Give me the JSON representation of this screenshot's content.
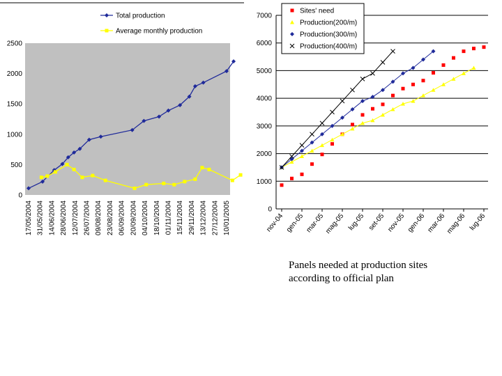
{
  "colors": {
    "blue": "#1f2a9a",
    "yellow": "#ffff00",
    "red": "#ff0000",
    "gray": "#c0c0c0",
    "black": "#000000"
  },
  "caption": {
    "line1": "Panels needed at production sites",
    "line2": "according to official plan"
  },
  "chart_data": [
    {
      "type": "line",
      "title": "",
      "xlabel": "",
      "ylabel": "",
      "ylim": [
        0,
        2500
      ],
      "yticks": [
        0,
        500,
        1000,
        1500,
        2000,
        2500
      ],
      "grid": false,
      "legend": "top",
      "xticks": [
        "17/05/2004",
        "31/05/2004",
        "14/06/2004",
        "28/06/2004",
        "12/07/2004",
        "26/07/2004",
        "09/08/2004",
        "23/08/2004",
        "06/09/2004",
        "20/09/2004",
        "04/10/2004",
        "18/10/2004",
        "01/11/2004",
        "15/11/2004",
        "29/11/2004",
        "13/12/2004",
        "27/12/2004",
        "10/01/2005"
      ],
      "series": [
        {
          "name": "Total production",
          "color": "#1f2a9a",
          "marker": "diamond",
          "points": [
            [
              0,
              110
            ],
            [
              1.2,
              220
            ],
            [
              2.2,
              410
            ],
            [
              2.9,
              510
            ],
            [
              3.4,
              620
            ],
            [
              3.9,
              700
            ],
            [
              4.4,
              760
            ],
            [
              5.2,
              910
            ],
            [
              6.2,
              960
            ],
            [
              8.9,
              1070
            ],
            [
              9.9,
              1220
            ],
            [
              11.2,
              1290
            ],
            [
              12,
              1390
            ],
            [
              13,
              1480
            ],
            [
              13.8,
              1620
            ],
            [
              14.3,
              1790
            ],
            [
              15,
              1850
            ],
            [
              17,
              2040
            ],
            [
              17.6,
              2200
            ]
          ]
        },
        {
          "name": "Average monthly production",
          "color": "#ffff00",
          "marker": "square",
          "points": [
            [
              1.1,
              290
            ],
            [
              1.6,
              310
            ],
            [
              2.3,
              380
            ],
            [
              3.3,
              500
            ],
            [
              3.9,
              420
            ],
            [
              4.6,
              290
            ],
            [
              5.5,
              320
            ],
            [
              6.6,
              240
            ],
            [
              9.1,
              110
            ],
            [
              10.1,
              170
            ],
            [
              11.6,
              190
            ],
            [
              12.5,
              170
            ],
            [
              13.4,
              220
            ],
            [
              14.3,
              260
            ],
            [
              14.9,
              450
            ],
            [
              15.5,
              420
            ],
            [
              17.5,
              240
            ],
            [
              18.2,
              330
            ]
          ]
        }
      ]
    },
    {
      "type": "line",
      "title": "",
      "xlabel": "",
      "ylabel": "",
      "ylim": [
        0,
        7000
      ],
      "yticks": [
        0,
        1000,
        2000,
        3000,
        4000,
        5000,
        6000,
        7000
      ],
      "grid": true,
      "legend": "top-left",
      "xticks": [
        "nov-04",
        "gen-05",
        "mar-05",
        "mag-05",
        "lug-05",
        "set-05",
        "nov-05",
        "gen-06",
        "mar-06",
        "mag-06",
        "lug-06"
      ],
      "series": [
        {
          "name": "Sites' need",
          "color": "#ff0000",
          "marker": "square",
          "points": [
            [
              0,
              860
            ],
            [
              1,
              1100
            ],
            [
              2,
              1250
            ],
            [
              3,
              1620
            ],
            [
              4,
              1970
            ],
            [
              5,
              2350
            ],
            [
              6,
              2700
            ],
            [
              7,
              3050
            ],
            [
              8,
              3400
            ],
            [
              9,
              3620
            ],
            [
              10,
              3780
            ],
            [
              11,
              4100
            ],
            [
              12,
              4350
            ],
            [
              13,
              4500
            ],
            [
              14,
              4640
            ],
            [
              15,
              4920
            ],
            [
              16,
              5200
            ],
            [
              17,
              5460
            ],
            [
              18,
              5700
            ],
            [
              19,
              5800
            ],
            [
              20,
              5850
            ]
          ]
        },
        {
          "name": "Production(200/m)",
          "color": "#ffff00",
          "marker": "triangle",
          "points": [
            [
              0,
              1500
            ],
            [
              1,
              1700
            ],
            [
              2,
              1900
            ],
            [
              3,
              2100
            ],
            [
              4,
              2300
            ],
            [
              5,
              2500
            ],
            [
              6,
              2700
            ],
            [
              7,
              2900
            ],
            [
              8,
              3100
            ],
            [
              9,
              3200
            ],
            [
              10,
              3400
            ],
            [
              11,
              3600
            ],
            [
              12,
              3800
            ],
            [
              13,
              3900
            ],
            [
              14,
              4100
            ],
            [
              15,
              4300
            ],
            [
              16,
              4500
            ],
            [
              17,
              4700
            ],
            [
              18,
              4900
            ],
            [
              19,
              5100
            ]
          ]
        },
        {
          "name": "Production(300/m)",
          "color": "#1f2a9a",
          "marker": "diamond",
          "points": [
            [
              0,
              1500
            ],
            [
              1,
              1800
            ],
            [
              2,
              2100
            ],
            [
              3,
              2400
            ],
            [
              4,
              2700
            ],
            [
              5,
              3000
            ],
            [
              6,
              3300
            ],
            [
              7,
              3600
            ],
            [
              8,
              3900
            ],
            [
              9,
              4050
            ],
            [
              10,
              4300
            ],
            [
              11,
              4600
            ],
            [
              12,
              4900
            ],
            [
              13,
              5100
            ],
            [
              14,
              5400
            ],
            [
              15,
              5700
            ]
          ]
        },
        {
          "name": "Production(400/m)",
          "color": "#000000",
          "marker": "x",
          "points": [
            [
              0,
              1500
            ],
            [
              1,
              1900
            ],
            [
              2,
              2300
            ],
            [
              3,
              2700
            ],
            [
              4,
              3100
            ],
            [
              5,
              3500
            ],
            [
              6,
              3900
            ],
            [
              7,
              4300
            ],
            [
              8,
              4700
            ],
            [
              9,
              4900
            ],
            [
              10,
              5300
            ],
            [
              11,
              5700
            ]
          ]
        }
      ]
    }
  ]
}
